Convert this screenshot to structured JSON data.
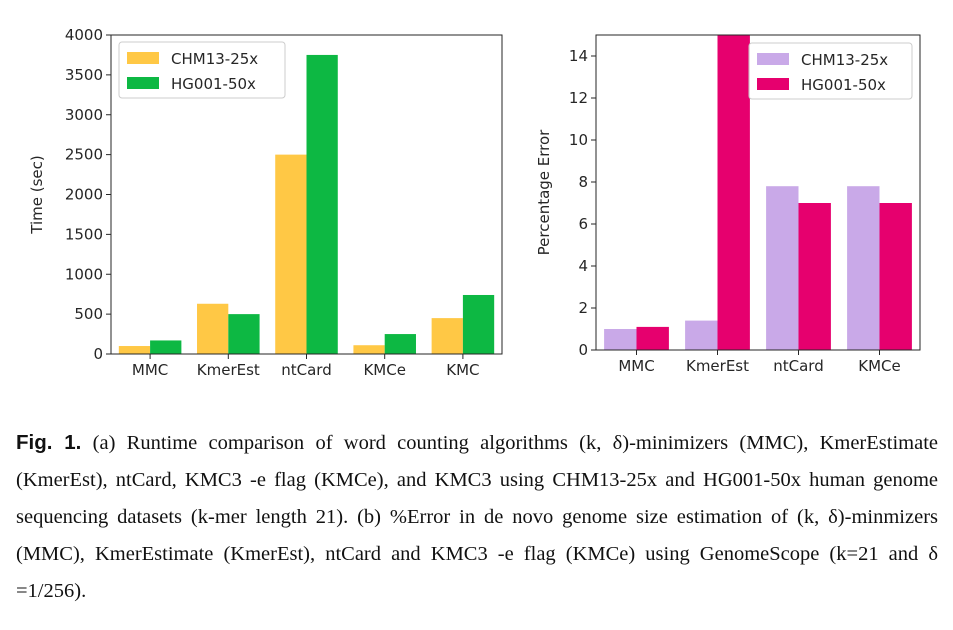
{
  "chart_data": [
    {
      "type": "bar",
      "panel": "a",
      "title": "",
      "xlabel": "",
      "ylabel": "Time (sec)",
      "categories": [
        "MMC",
        "KmerEst",
        "ntCard",
        "KMCe",
        "KMC"
      ],
      "ylim": [
        0,
        4000
      ],
      "yticks": [
        0,
        500,
        1000,
        1500,
        2000,
        2500,
        3000,
        3500,
        4000
      ],
      "legend_position": "top-left",
      "series": [
        {
          "name": "CHM13-25x",
          "color": "#FFC845",
          "values": [
            100,
            630,
            2500,
            110,
            450
          ]
        },
        {
          "name": "HG001-50x",
          "color": "#0DB843",
          "values": [
            170,
            500,
            3750,
            250,
            740
          ]
        }
      ]
    },
    {
      "type": "bar",
      "panel": "b",
      "title": "",
      "xlabel": "",
      "ylabel": "Percentage Error",
      "categories": [
        "MMC",
        "KmerEst",
        "ntCard",
        "KMCe"
      ],
      "ylim": [
        0,
        15
      ],
      "yticks": [
        0,
        2,
        4,
        6,
        8,
        10,
        12,
        14
      ],
      "legend_position": "top-right",
      "annotations": [
        "KmerEst HG001-50x bar exceeds axis range (hatched)"
      ],
      "series": [
        {
          "name": "CHM13-25x",
          "color": "#C9A9E8",
          "values": [
            1.0,
            1.4,
            7.8,
            7.8
          ]
        },
        {
          "name": "HG001-50x",
          "color": "#E6006E",
          "values": [
            1.1,
            15,
            7.0,
            7.0
          ]
        }
      ]
    }
  ],
  "caption": {
    "label": "Fig. 1.",
    "text": " (a) Runtime comparison of word counting algorithms (k, δ)-minimizers (MMC), KmerEstimate (KmerEst), ntCard, KMC3 -e flag (KMCe), and KMC3 using CHM13-25x and HG001-50x human genome sequencing datasets (k-mer length 21). (b) %Error in de novo genome size estimation of (k, δ)-minmizers (MMC), KmerEstimate (KmerEst), ntCard and KMC3 -e flag (KMCe) using GenomeScope (k=21 and δ =1/256)."
  }
}
